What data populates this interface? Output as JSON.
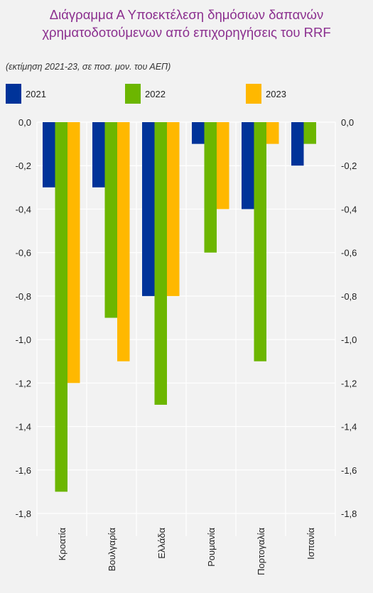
{
  "chart_data": {
    "type": "bar",
    "title_line1": "Διάγραμμα Α Υποεκτέλεση δημόσιων δαπανών",
    "title_line2": "χρηματοδοτούμενων από επιχορηγήσεις του RRF",
    "subtitle": "(εκτίμηση 2021-23, σε ποσ. μον. του ΑΕΠ)",
    "categories": [
      "Κροατία",
      "Βουλγαρία",
      "Ελλάδα",
      "Ρουμανία",
      "Πορτογαλία",
      "Ισπανία"
    ],
    "series": [
      {
        "name": "2021",
        "color": "#003399",
        "values": [
          -0.3,
          -0.3,
          -0.8,
          -0.1,
          -0.4,
          -0.2
        ]
      },
      {
        "name": "2022",
        "color": "#6cb600",
        "values": [
          -1.7,
          -0.9,
          -1.3,
          -0.6,
          -1.1,
          -0.1
        ]
      },
      {
        "name": "2023",
        "color": "#ffb800",
        "values": [
          -1.2,
          -1.1,
          -0.8,
          -0.4,
          -0.1,
          null
        ]
      }
    ],
    "ylim": [
      -1.8,
      0.0
    ],
    "yticks": [
      "0,0",
      "-0,2",
      "-0,4",
      "-0,6",
      "-0,8",
      "-1,0",
      "-1,2",
      "-1,4",
      "-1,6",
      "-1,8"
    ],
    "grid": true,
    "legend_position": "top",
    "colors": {
      "title": "#8b2f8f",
      "background": "#f2f2f2",
      "grid": "#ffffff"
    }
  }
}
